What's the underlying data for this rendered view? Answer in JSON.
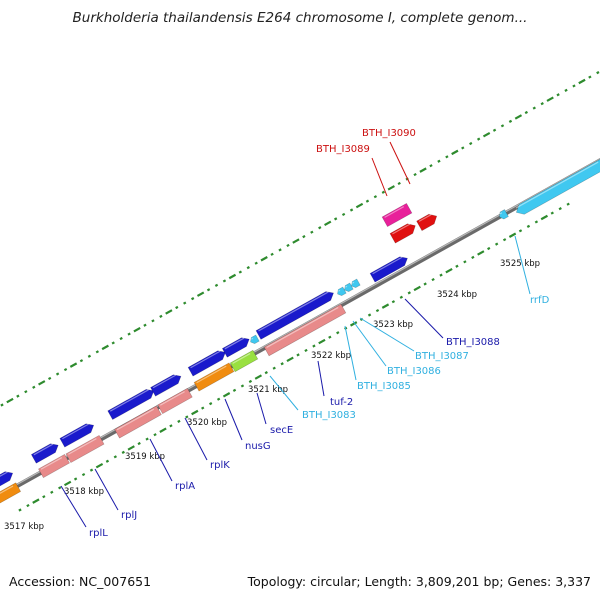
{
  "title": "Burkholderia thailandensis E264 chromosome I, complete genom...",
  "footer": {
    "accession": "Accession: NC_007651",
    "topology": "Topology: circular; Length: 3,809,201 bp; Genes: 3,337"
  },
  "colors": {
    "backbone": "#888888",
    "tick": "#2e8b2e",
    "blue_gene": "#1a1acc",
    "pink_gene": "#e88a8a",
    "orange_gene": "#f08c10",
    "green_gene": "#99e040",
    "cyan_gene": "#40c8f0",
    "red_gene": "#e01010",
    "magenta_gene": "#e8209a"
  },
  "ruler": [
    {
      "label": "3517 kbp",
      "pos": 3517
    },
    {
      "label": "3518 kbp",
      "pos": 3518
    },
    {
      "label": "3519 kbp",
      "pos": 3519
    },
    {
      "label": "3520 kbp",
      "pos": 3520
    },
    {
      "label": "3521 kbp",
      "pos": 3521
    },
    {
      "label": "3522 kbp",
      "pos": 3522
    },
    {
      "label": "3523 kbp",
      "pos": 3523
    },
    {
      "label": "3524 kbp",
      "pos": 3524
    },
    {
      "label": "3525 kbp",
      "pos": 3525
    }
  ],
  "gene_labels": [
    {
      "name": "rplL",
      "color": "#1a1aaa"
    },
    {
      "name": "rplJ",
      "color": "#1a1aaa"
    },
    {
      "name": "rplA",
      "color": "#1a1aaa"
    },
    {
      "name": "rplK",
      "color": "#1a1aaa"
    },
    {
      "name": "nusG",
      "color": "#1a1aaa"
    },
    {
      "name": "secE",
      "color": "#1a1aaa"
    },
    {
      "name": "BTH_I3083",
      "color": "#30b0e0"
    },
    {
      "name": "tuf-2",
      "color": "#1a1aaa"
    },
    {
      "name": "BTH_I3085",
      "color": "#30b0e0"
    },
    {
      "name": "BTH_I3086",
      "color": "#30b0e0"
    },
    {
      "name": "BTH_I3087",
      "color": "#30b0e0"
    },
    {
      "name": "BTH_I3088",
      "color": "#1a1aaa"
    },
    {
      "name": "rrfD",
      "color": "#30b0e0"
    },
    {
      "name": "BTH_I3089",
      "color": "#cc1010"
    },
    {
      "name": "BTH_I3090",
      "color": "#cc1010"
    }
  ]
}
